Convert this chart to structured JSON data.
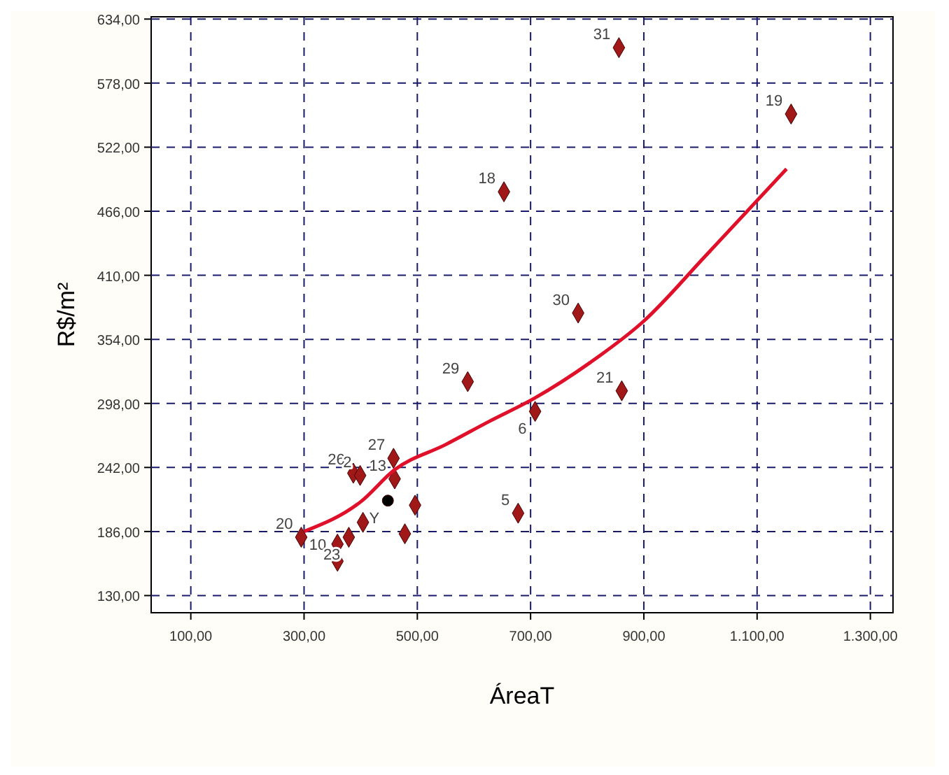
{
  "chart_data": {
    "type": "scatter",
    "xlabel": "ÁreaT",
    "ylabel": "R$/m²",
    "xlim": [
      30,
      1340
    ],
    "ylim": [
      115,
      636
    ],
    "xticks": [
      {
        "value": 100,
        "label": "100,00"
      },
      {
        "value": 300,
        "label": "300,00"
      },
      {
        "value": 500,
        "label": "500,00"
      },
      {
        "value": 700,
        "label": "700,00"
      },
      {
        "value": 900,
        "label": "900,00"
      },
      {
        "value": 1100,
        "label": "1.100,00"
      },
      {
        "value": 1300,
        "label": "1.300,00"
      }
    ],
    "yticks": [
      {
        "value": 130,
        "label": "130,00"
      },
      {
        "value": 186,
        "label": "186,00"
      },
      {
        "value": 242,
        "label": "242,00"
      },
      {
        "value": 298,
        "label": "298,00"
      },
      {
        "value": 354,
        "label": "354,00"
      },
      {
        "value": 410,
        "label": "410,00"
      },
      {
        "value": 466,
        "label": "466,00"
      },
      {
        "value": 522,
        "label": "522,00"
      },
      {
        "value": 578,
        "label": "578,00"
      },
      {
        "value": 634,
        "label": "634,00"
      }
    ],
    "grid": true,
    "marker": "diamond",
    "series": [
      {
        "color": "#a01818",
        "x": [
          856,
          1160,
          653,
          784,
          589,
          708,
          861,
          678,
          295,
          359,
          379,
          404,
          359,
          387,
          399,
          458,
          460,
          496,
          478
        ],
        "values": [
          609,
          551,
          483,
          377,
          317,
          291,
          309,
          202,
          181,
          175,
          181,
          194,
          160,
          237,
          235,
          250,
          232,
          209,
          184
        ]
      },
      {
        "color": "#000000",
        "marker": "circle",
        "x": [
          448
        ],
        "values": [
          213
        ]
      },
      {
        "type": "line",
        "marker": "none",
        "color": "#e0102a",
        "x": [
          300,
          400,
          460,
          550,
          626,
          705,
          806,
          900,
          1009,
          1152
        ],
        "values": [
          186,
          212,
          240,
          262,
          282,
          302,
          334,
          370,
          427,
          503
        ]
      }
    ],
    "annotations": [
      {
        "text": "31",
        "x": 856,
        "y": 609
      },
      {
        "text": "19",
        "x": 1160,
        "y": 551
      },
      {
        "text": "18",
        "x": 653,
        "y": 483
      },
      {
        "text": "30",
        "x": 784,
        "y": 377
      },
      {
        "text": "29",
        "x": 589,
        "y": 317
      },
      {
        "text": "6",
        "x": 708,
        "y": 291
      },
      {
        "text": "21",
        "x": 861,
        "y": 309
      },
      {
        "text": "5",
        "x": 678,
        "y": 202
      },
      {
        "text": "20",
        "x": 295,
        "y": 181
      },
      {
        "text": "10",
        "x": 359,
        "y": 175
      },
      {
        "text": "23",
        "x": 379,
        "y": 181
      },
      {
        "text": "26",
        "x": 387,
        "y": 237
      },
      {
        "text": "2",
        "x": 399,
        "y": 235
      },
      {
        "text": "27",
        "x": 458,
        "y": 250
      },
      {
        "text": "13",
        "x": 460,
        "y": 232
      },
      {
        "text": "Y",
        "x": 448,
        "y": 213
      }
    ]
  }
}
